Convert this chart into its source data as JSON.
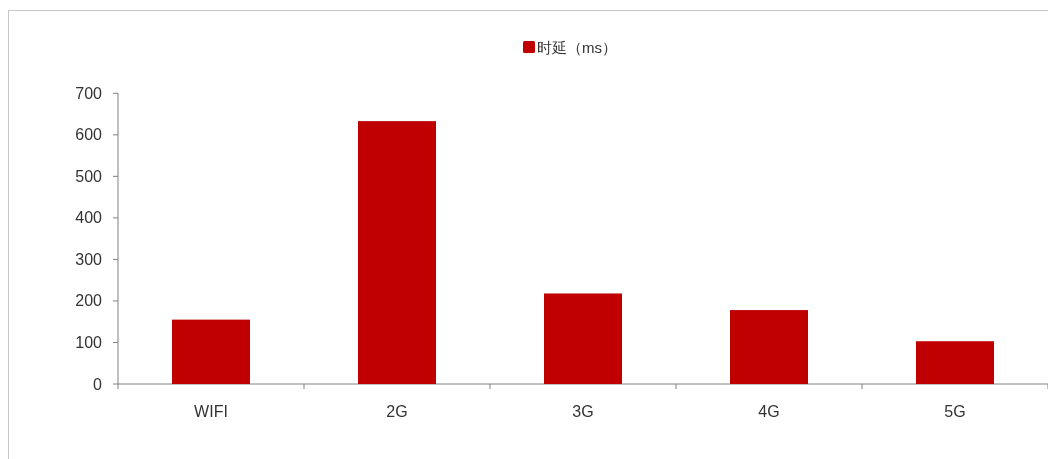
{
  "chart_data": {
    "type": "bar",
    "categories": [
      "WIFI",
      "2G",
      "3G",
      "4G",
      "5G"
    ],
    "series": [
      {
        "name": "时延（ms）",
        "color": "#c00000",
        "values": [
          155,
          633,
          218,
          178,
          103
        ]
      }
    ],
    "ylim": [
      0,
      700
    ],
    "yticks": [
      0,
      100,
      200,
      300,
      400,
      500,
      600,
      700
    ],
    "grid": false,
    "legend": "top"
  }
}
